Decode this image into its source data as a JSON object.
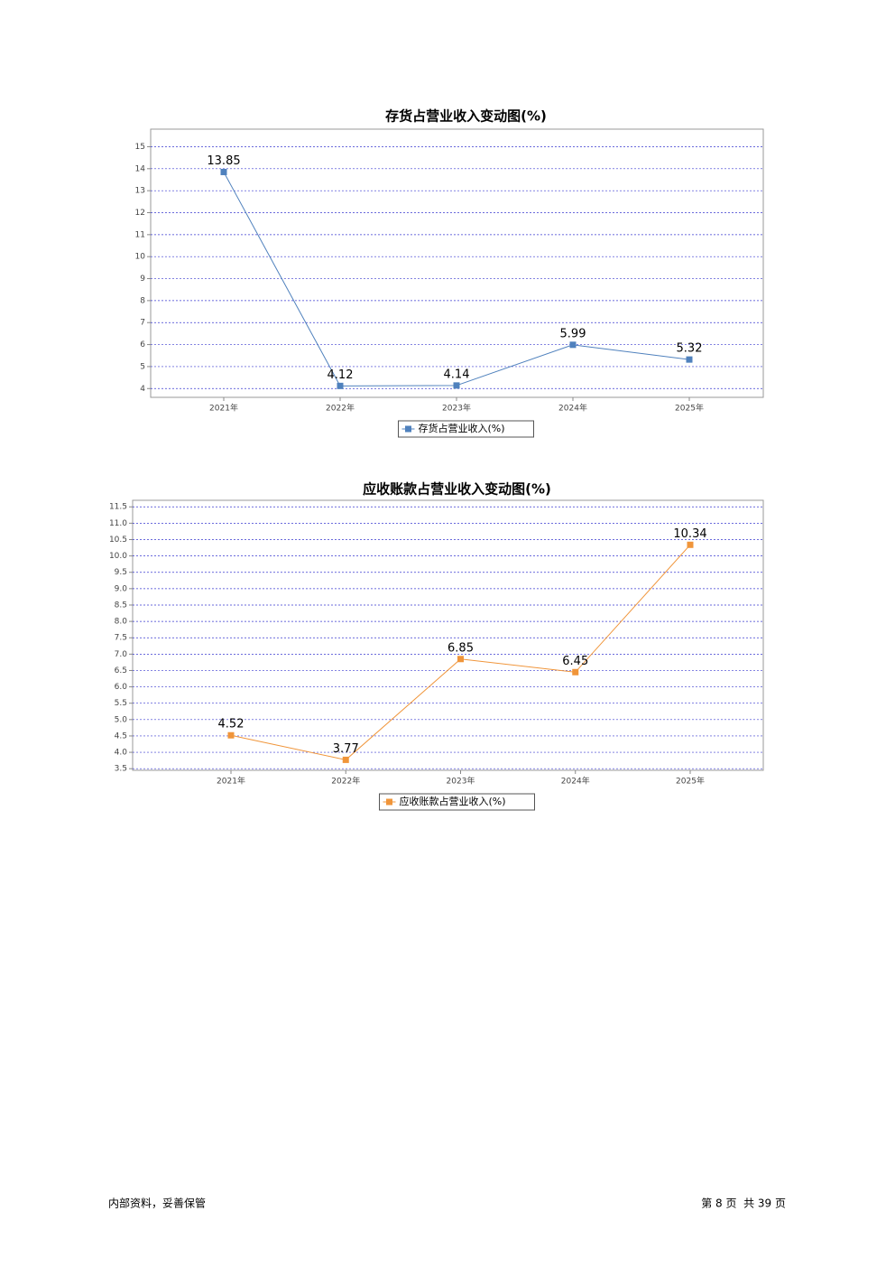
{
  "chart_data": [
    {
      "type": "line",
      "title": "存货占营业收入变动图(%)",
      "categories": [
        "2021年",
        "2022年",
        "2023年",
        "2024年",
        "2025年"
      ],
      "series": [
        {
          "name": "存货占营业收入(%)",
          "color": "#4f81bd",
          "values": [
            13.85,
            4.12,
            4.14,
            5.99,
            5.32
          ]
        }
      ],
      "ylim": [
        3.6,
        15.8
      ],
      "yticks": [
        4,
        5,
        6,
        7,
        8,
        9,
        10,
        11,
        12,
        13,
        14,
        15
      ],
      "grid": true,
      "legend": "bottom"
    },
    {
      "type": "line",
      "title": "应收账款占营业收入变动图(%)",
      "categories": [
        "2021年",
        "2022年",
        "2023年",
        "2024年",
        "2025年"
      ],
      "series": [
        {
          "name": "应收账款占营业收入(%)",
          "color": "#f0953a",
          "values": [
            4.52,
            3.77,
            6.85,
            6.45,
            10.34
          ]
        }
      ],
      "ylim": [
        3.45,
        11.7
      ],
      "yticks": [
        3.5,
        {
          "value": 4,
          "label": "4.0"
        },
        4.5,
        {
          "value": 5,
          "label": "5.0"
        },
        5.5,
        {
          "value": 6,
          "label": "6.0"
        },
        6.5,
        {
          "value": 7,
          "label": "7.0"
        },
        7.5,
        {
          "value": 8,
          "label": "8.0"
        },
        8.5,
        {
          "value": 9,
          "label": "9.0"
        },
        9.5,
        {
          "value": 10,
          "label": "10.0"
        },
        10.5,
        {
          "value": 11,
          "label": "11.0"
        },
        11.5
      ],
      "grid": true,
      "legend": "bottom"
    }
  ],
  "footer": {
    "left": "内部资料，妥善保管",
    "right": "第 8 页  共 39 页"
  }
}
